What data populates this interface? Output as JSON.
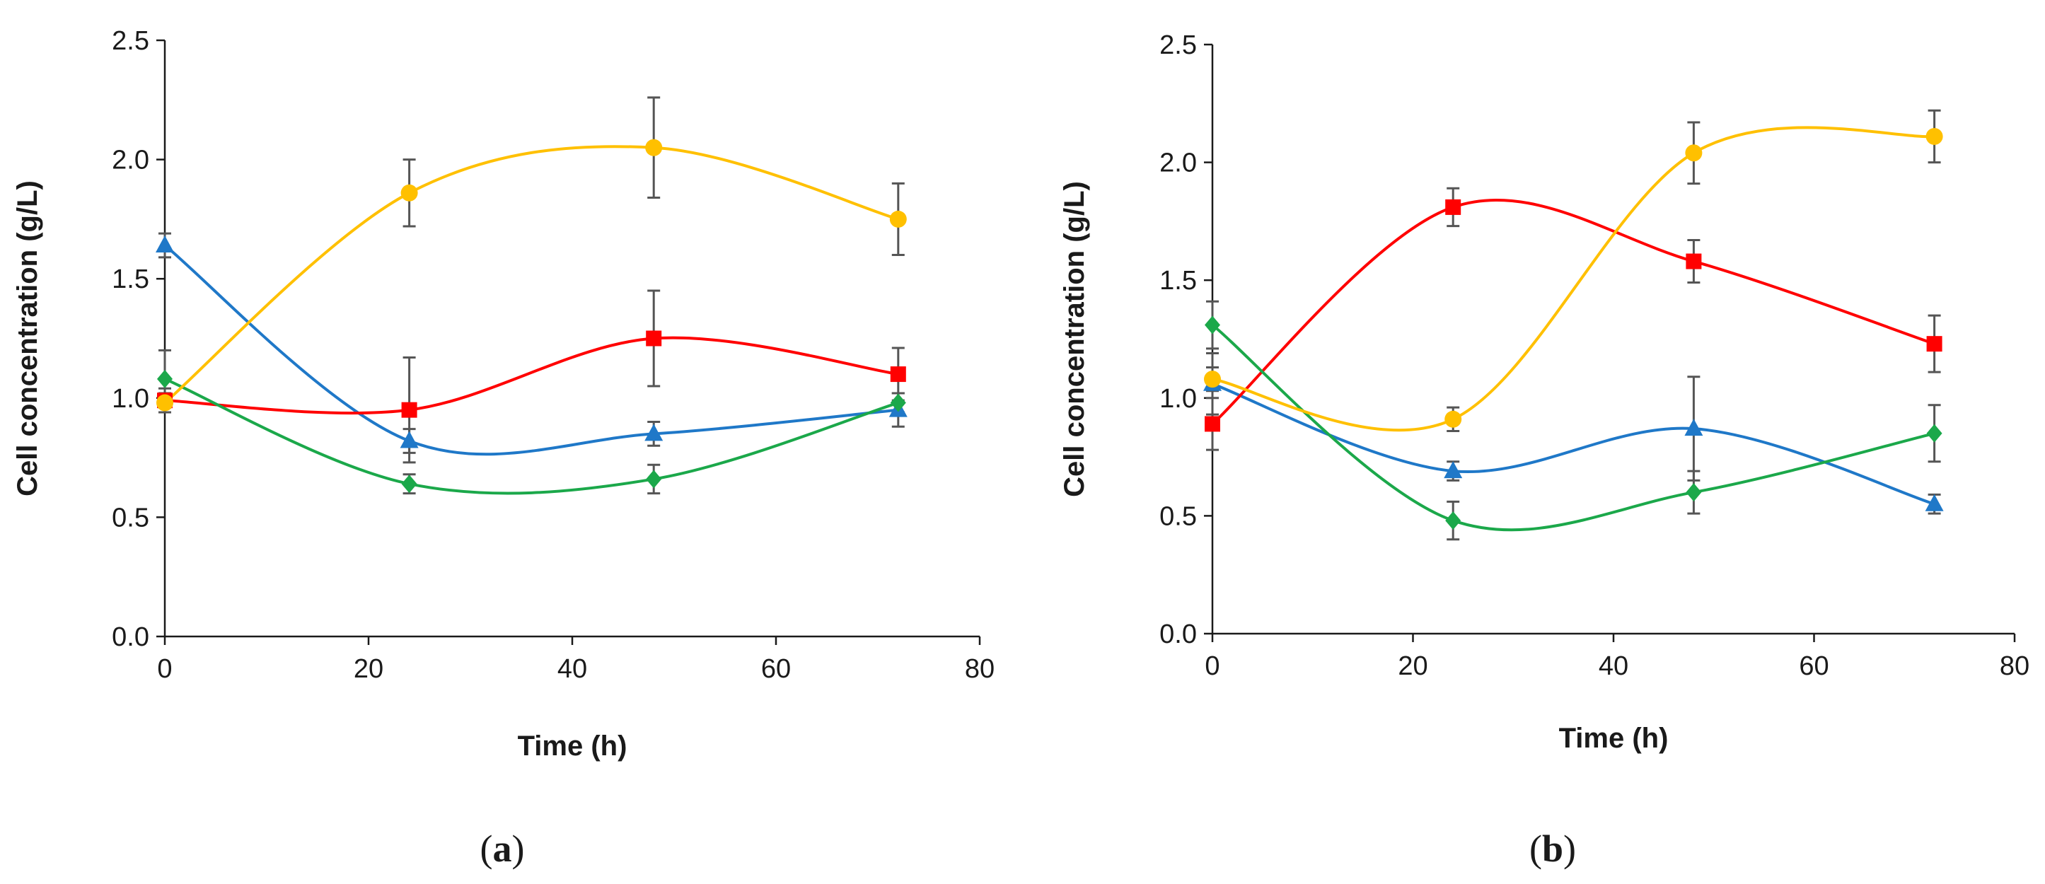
{
  "chart_data": [
    {
      "panel": "a",
      "type": "line",
      "xlabel": "Time (h)",
      "ylabel": "Cell concentration (g/L)",
      "xlim": [
        0,
        80
      ],
      "ylim": [
        0,
        2.5
      ],
      "xticks": [
        "0",
        "20",
        "40",
        "60",
        "80"
      ],
      "yticks": [
        "0.0",
        "0.5",
        "1.0",
        "1.5",
        "2.0",
        "2.5"
      ],
      "x": [
        0,
        24,
        48,
        72
      ],
      "series": [
        {
          "name": "triangle",
          "color": "#1f78c8",
          "marker": "triangle",
          "values": [
            1.64,
            0.82,
            0.85,
            0.95
          ],
          "errors": [
            0.05,
            0.05,
            0.05,
            0.07
          ]
        },
        {
          "name": "square",
          "color": "#ff0000",
          "marker": "square",
          "values": [
            0.99,
            0.95,
            1.25,
            1.1
          ],
          "errors": [
            0.05,
            0.22,
            0.2,
            0.11
          ]
        },
        {
          "name": "diamond",
          "color": "#1ba84a",
          "marker": "diamond",
          "values": [
            1.08,
            0.64,
            0.66,
            0.98
          ],
          "errors": [
            0.12,
            0.04,
            0.06,
            0.04
          ]
        },
        {
          "name": "circle",
          "color": "#ffc000",
          "marker": "circle",
          "values": [
            0.98,
            1.86,
            2.05,
            1.75
          ],
          "errors": [
            0.04,
            0.14,
            0.21,
            0.15
          ]
        }
      ]
    },
    {
      "panel": "b",
      "type": "line",
      "xlabel": "Time (h)",
      "ylabel": "Cell concentration (g/L)",
      "xlim": [
        0,
        80
      ],
      "ylim": [
        0,
        2.5
      ],
      "xticks": [
        "0",
        "20",
        "40",
        "60",
        "80"
      ],
      "yticks": [
        "0.0",
        "0.5",
        "1.0",
        "1.5",
        "2.0",
        "2.5"
      ],
      "x": [
        0,
        24,
        48,
        72
      ],
      "series": [
        {
          "name": "triangle",
          "color": "#1f78c8",
          "marker": "triangle",
          "values": [
            1.06,
            0.69,
            0.87,
            0.55
          ],
          "errors": [
            0.13,
            0.04,
            0.22,
            0.04
          ]
        },
        {
          "name": "square",
          "color": "#ff0000",
          "marker": "square",
          "values": [
            0.89,
            1.81,
            1.58,
            1.23
          ],
          "errors": [
            0.11,
            0.08,
            0.09,
            0.12
          ]
        },
        {
          "name": "diamond",
          "color": "#1ba84a",
          "marker": "diamond",
          "values": [
            1.31,
            0.48,
            0.6,
            0.85
          ],
          "errors": [
            0.1,
            0.08,
            0.09,
            0.12
          ]
        },
        {
          "name": "circle",
          "color": "#ffc000",
          "marker": "circle",
          "values": [
            1.08,
            0.91,
            2.04,
            2.11
          ],
          "errors": [
            0.05,
            0.05,
            0.13,
            0.11
          ]
        }
      ]
    }
  ],
  "panel_labels": {
    "a": {
      "open": "(",
      "letter": "a",
      "close": ")"
    },
    "b": {
      "open": "(",
      "letter": "b",
      "close": ")"
    }
  }
}
